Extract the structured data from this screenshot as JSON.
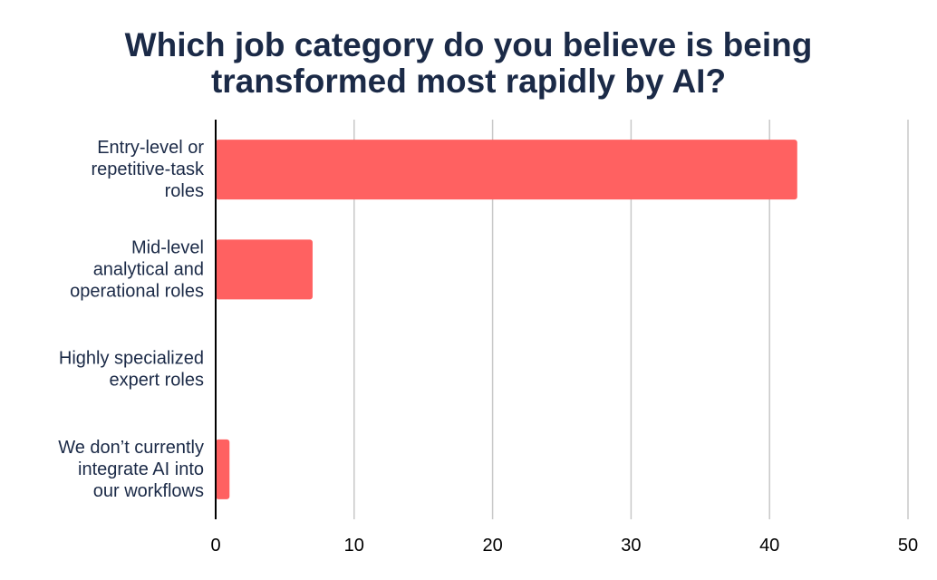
{
  "chart_data": {
    "type": "bar",
    "orientation": "horizontal",
    "title_lines": [
      "Which job category do you believe is being",
      "transformed most rapidly by AI?"
    ],
    "categories": [
      [
        "Entry-level or",
        "repetitive-task",
        "roles"
      ],
      [
        "Mid-level",
        "analytical and",
        "operational roles"
      ],
      [
        "Highly specialized",
        "expert roles"
      ],
      [
        "We don’t currently",
        "integrate AI into",
        "our workflows"
      ]
    ],
    "values": [
      42,
      7,
      0,
      1
    ],
    "xlim": [
      0,
      50
    ],
    "x_ticks": [
      0,
      10,
      20,
      30,
      40,
      50
    ],
    "grid": true,
    "legend": "none",
    "colors": {
      "bar": "#ff6161",
      "grid": "#c8c8c8",
      "axis": "#000000",
      "title": "#1b2a47"
    }
  }
}
